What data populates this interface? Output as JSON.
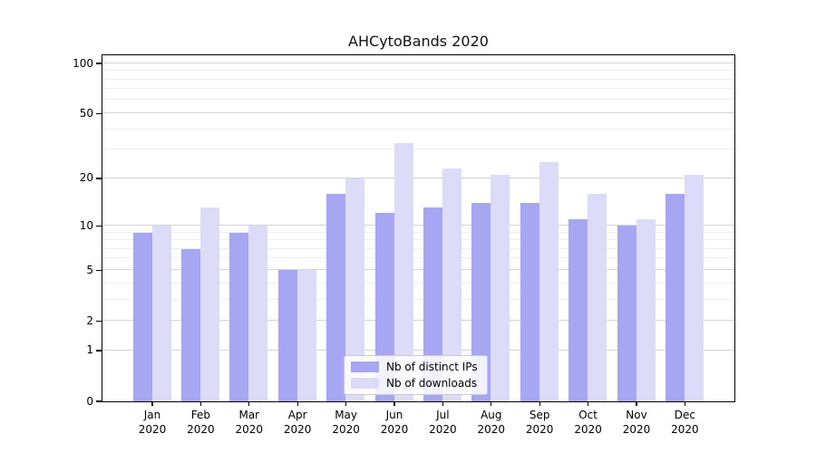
{
  "chart_data": {
    "type": "bar",
    "title": "AHCytoBands 2020",
    "categories": [
      "Jan 2020",
      "Feb 2020",
      "Mar 2020",
      "Apr 2020",
      "May 2020",
      "Jun 2020",
      "Jul 2020",
      "Aug 2020",
      "Sep 2020",
      "Oct 2020",
      "Nov 2020",
      "Dec 2020"
    ],
    "series": [
      {
        "name": "Nb of distinct IPs",
        "color": "#a6a6f2",
        "values": [
          9,
          7,
          9,
          5,
          16,
          12,
          13,
          14,
          14,
          11,
          10,
          16
        ]
      },
      {
        "name": "Nb of downloads",
        "color": "#dcdcf9",
        "values": [
          10,
          13,
          10,
          5,
          20,
          33,
          23,
          21,
          25,
          16,
          11,
          21
        ]
      }
    ],
    "yscale": "log1p",
    "ylim": [
      0,
      112
    ],
    "yticks": [
      0,
      1,
      2,
      5,
      10,
      20,
      50,
      100
    ],
    "minor_gridlines": [
      3,
      4,
      6,
      7,
      8,
      9,
      30,
      40,
      60,
      70,
      80,
      90
    ],
    "grid": true,
    "legend_position": "lower center",
    "axis_color": "#000000",
    "major_grid_color": "#d4d4d4",
    "minor_grid_color": "#eeeeee"
  }
}
